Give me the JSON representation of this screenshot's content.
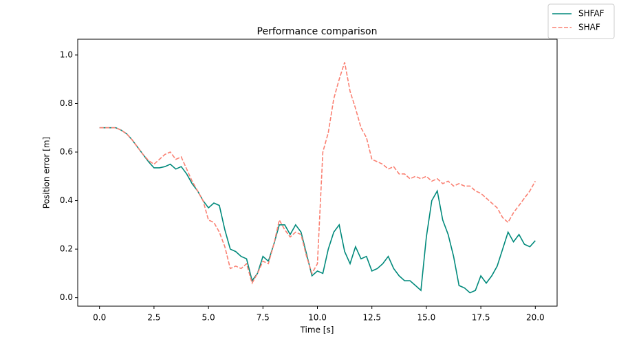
{
  "chart_data": {
    "type": "line",
    "title": "Performance comparison",
    "xlabel": "Time [s]",
    "ylabel": "Position error [m]",
    "x": [
      0,
      0.25,
      0.5,
      0.75,
      1,
      1.25,
      1.5,
      1.75,
      2,
      2.25,
      2.5,
      2.75,
      3,
      3.25,
      3.5,
      3.75,
      4,
      4.25,
      4.5,
      4.75,
      5,
      5.25,
      5.5,
      5.75,
      6,
      6.25,
      6.5,
      6.75,
      7,
      7.25,
      7.5,
      7.75,
      8,
      8.25,
      8.5,
      8.75,
      9,
      9.25,
      9.5,
      9.75,
      10,
      10.25,
      10.5,
      10.75,
      11,
      11.25,
      11.5,
      11.75,
      12,
      12.25,
      12.5,
      12.75,
      13,
      13.25,
      13.5,
      13.75,
      14,
      14.25,
      14.5,
      14.75,
      15,
      15.25,
      15.5,
      15.75,
      16,
      16.25,
      16.5,
      16.75,
      17,
      17.25,
      17.5,
      17.75,
      18,
      18.25,
      18.5,
      18.75,
      19,
      19.25,
      19.5,
      19.75,
      20
    ],
    "series": [
      {
        "name": "SHFAF",
        "color": "#00897b",
        "dash": false,
        "values": [
          0.7,
          0.7,
          0.7,
          0.7,
          0.69,
          0.675,
          0.65,
          0.62,
          0.59,
          0.56,
          0.535,
          0.535,
          0.54,
          0.55,
          0.53,
          0.54,
          0.51,
          0.47,
          0.44,
          0.4,
          0.37,
          0.39,
          0.38,
          0.28,
          0.2,
          0.19,
          0.17,
          0.16,
          0.07,
          0.1,
          0.17,
          0.15,
          0.22,
          0.3,
          0.3,
          0.26,
          0.3,
          0.27,
          0.18,
          0.09,
          0.11,
          0.1,
          0.2,
          0.27,
          0.3,
          0.19,
          0.14,
          0.21,
          0.16,
          0.17,
          0.11,
          0.12,
          0.14,
          0.17,
          0.12,
          0.09,
          0.07,
          0.07,
          0.05,
          0.03,
          0.25,
          0.4,
          0.44,
          0.32,
          0.26,
          0.17,
          0.05,
          0.04,
          0.02,
          0.03,
          0.09,
          0.06,
          0.09,
          0.13,
          0.2,
          0.27,
          0.23,
          0.26,
          0.22,
          0.21,
          0.235
        ]
      },
      {
        "name": "SHAF",
        "color": "#fa8072",
        "dash": true,
        "values": [
          0.7,
          0.7,
          0.7,
          0.7,
          0.69,
          0.675,
          0.65,
          0.62,
          0.59,
          0.565,
          0.55,
          0.57,
          0.59,
          0.6,
          0.57,
          0.58,
          0.53,
          0.48,
          0.44,
          0.4,
          0.32,
          0.31,
          0.27,
          0.21,
          0.12,
          0.13,
          0.12,
          0.14,
          0.06,
          0.1,
          0.15,
          0.14,
          0.22,
          0.32,
          0.28,
          0.25,
          0.27,
          0.26,
          0.17,
          0.1,
          0.14,
          0.6,
          0.68,
          0.82,
          0.9,
          0.97,
          0.85,
          0.78,
          0.7,
          0.66,
          0.57,
          0.56,
          0.55,
          0.53,
          0.54,
          0.51,
          0.51,
          0.49,
          0.5,
          0.49,
          0.5,
          0.48,
          0.49,
          0.47,
          0.48,
          0.46,
          0.47,
          0.46,
          0.46,
          0.44,
          0.43,
          0.41,
          0.39,
          0.37,
          0.33,
          0.31,
          0.35,
          0.38,
          0.41,
          0.44,
          0.48
        ]
      }
    ],
    "xlim": [
      -1,
      21
    ],
    "ylim": [
      -0.035,
      1.065
    ],
    "xticks": [
      {
        "value": 0,
        "label": "0.0"
      },
      2.5,
      {
        "value": 5,
        "label": "5.0"
      },
      7.5,
      {
        "value": 10,
        "label": "10.0"
      },
      12.5,
      {
        "value": 15,
        "label": "15.0"
      },
      17.5,
      {
        "value": 20,
        "label": "20.0"
      }
    ],
    "yticks": [
      {
        "value": 0,
        "label": "0.0"
      },
      0.2,
      0.4,
      0.6,
      0.8,
      {
        "value": 1,
        "label": "1.0"
      }
    ],
    "grid": false,
    "legend": "upper right"
  }
}
